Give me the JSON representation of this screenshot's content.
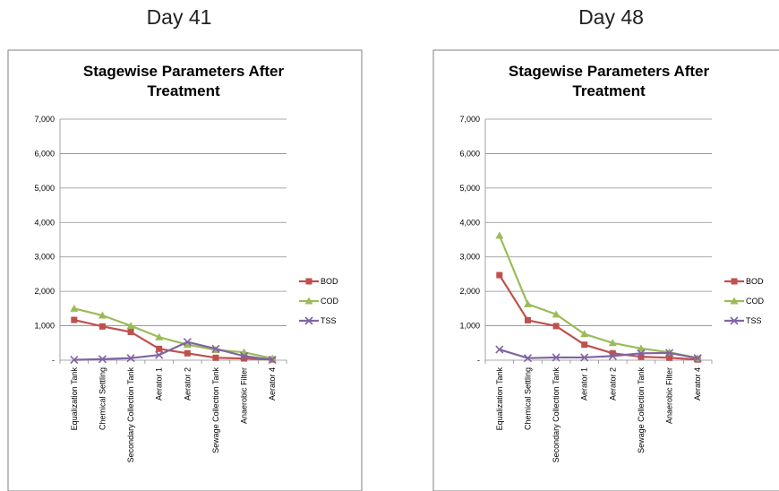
{
  "panels": [
    {
      "label": "Day 41"
    },
    {
      "label": "Day 48"
    }
  ],
  "chart_data": [
    {
      "type": "line",
      "title_line1": "Stagewise Parameters After",
      "title_line2": "Treatment",
      "categories": [
        "Equalization Tank",
        "Chemical Settling",
        "Secondary Collection Tank",
        "Aerator 1",
        "Aerator 2",
        "Sewage Collection Tank",
        "Anaerobic Filter",
        "Aerator 4"
      ],
      "ylim": [
        0,
        7000
      ],
      "yticks": [
        0,
        1000,
        2000,
        3000,
        4000,
        5000,
        6000,
        7000
      ],
      "ytick_labels": [
        "-",
        "1,000",
        "2,000",
        "3,000",
        "4,000",
        "5,000",
        "6,000",
        "7,000"
      ],
      "grid": true,
      "legend": "right",
      "series": [
        {
          "name": "BOD",
          "color": "#c0504d",
          "marker": "square",
          "values": [
            1170,
            980,
            820,
            330,
            200,
            70,
            50,
            20
          ]
        },
        {
          "name": "COD",
          "color": "#9bbb59",
          "marker": "triangle",
          "values": [
            1500,
            1300,
            1000,
            670,
            450,
            300,
            230,
            50
          ]
        },
        {
          "name": "TSS",
          "color": "#8064a2",
          "marker": "x",
          "values": [
            10,
            30,
            60,
            150,
            530,
            330,
            120,
            10
          ]
        }
      ]
    },
    {
      "type": "line",
      "title_line1": "Stagewise Parameters After",
      "title_line2": "Treatment",
      "categories": [
        "Equalization Tank",
        "Chemical Settling",
        "Secondary Collection Tank",
        "Aerator 1",
        "Aerator 2",
        "Sewage Collection Tank",
        "Anaerobic Filter",
        "Aerator 4"
      ],
      "ylim": [
        0,
        7000
      ],
      "yticks": [
        0,
        1000,
        2000,
        3000,
        4000,
        5000,
        6000,
        7000
      ],
      "ytick_labels": [
        "-",
        "1,000",
        "2,000",
        "3,000",
        "4,000",
        "5,000",
        "6,000",
        "7,000"
      ],
      "grid": true,
      "legend": "right",
      "series": [
        {
          "name": "BOD",
          "color": "#c0504d",
          "marker": "square",
          "values": [
            2470,
            1160,
            990,
            450,
            200,
            100,
            70,
            20
          ]
        },
        {
          "name": "COD",
          "color": "#9bbb59",
          "marker": "triangle",
          "values": [
            3620,
            1630,
            1330,
            760,
            500,
            340,
            230,
            60
          ]
        },
        {
          "name": "TSS",
          "color": "#8064a2",
          "marker": "x",
          "values": [
            310,
            60,
            80,
            80,
            120,
            200,
            210,
            60
          ]
        }
      ]
    }
  ]
}
